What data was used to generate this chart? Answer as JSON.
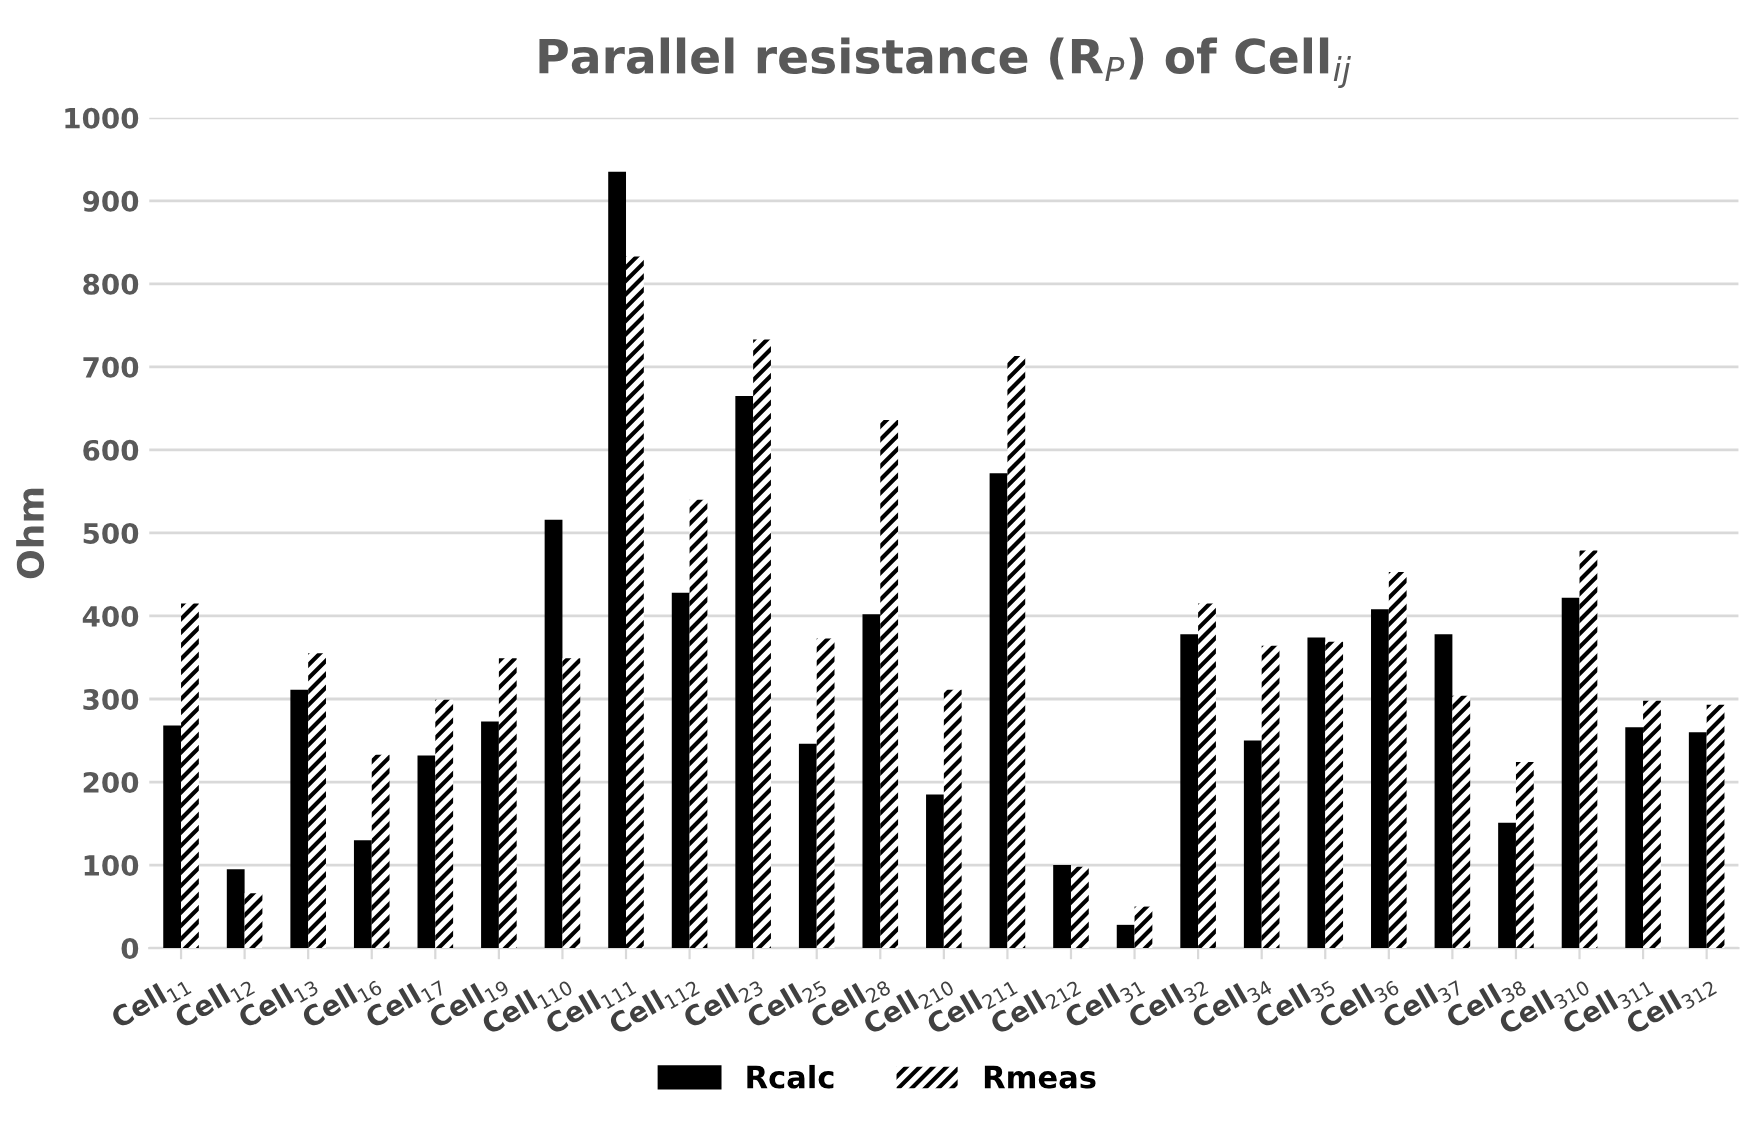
{
  "chart_data": {
    "type": "bar",
    "title": "Parallel resistance (R$_{P}$) of Cell$_{ij}$",
    "ylabel": "Ohm",
    "categories": [
      "Cell$_{11}$",
      "Cell$_{12}$",
      "Cell$_{13}$",
      "Cell$_{16}$",
      "Cell$_{17}$",
      "Cell$_{19}$",
      "Cell$_{110}$",
      "Cell$_{111}$",
      "Cell$_{112}$",
      "Cell$_{23}$",
      "Cell$_{25}$",
      "Cell$_{28}$",
      "Cell$_{210}$",
      "Cell$_{211}$",
      "Cell$_{212}$",
      "Cell$_{31}$",
      "Cell$_{32}$",
      "Cell$_{34}$",
      "Cell$_{35}$",
      "Cell$_{36}$",
      "Cell$_{37}$",
      "Cell$_{38}$",
      "Cell$_{310}$",
      "Cell$_{311}$",
      "Cell$_{312}$"
    ],
    "series": [
      {
        "name": "Rcalc",
        "color": "#000000",
        "values": [
          268,
          95,
          311,
          130,
          232,
          273,
          516,
          935,
          428,
          665,
          246,
          402,
          185,
          572,
          100,
          28,
          378,
          250,
          374,
          408,
          378,
          151,
          422,
          266,
          260
        ]
      },
      {
        "name": "Rmeas",
        "color": "#000000",
        "values": [
          415,
          66,
          355,
          233,
          299,
          349,
          349,
          833,
          540,
          733,
          373,
          636,
          311,
          713,
          98,
          50,
          415,
          364,
          369,
          453,
          304,
          224,
          479,
          298,
          293
        ]
      }
    ],
    "ylim": [
      0,
      1000
    ],
    "yticks": [
      0,
      100,
      200,
      300,
      400,
      500,
      600,
      700,
      800,
      900,
      1000
    ],
    "grid": "y",
    "legend": "bottom"
  }
}
